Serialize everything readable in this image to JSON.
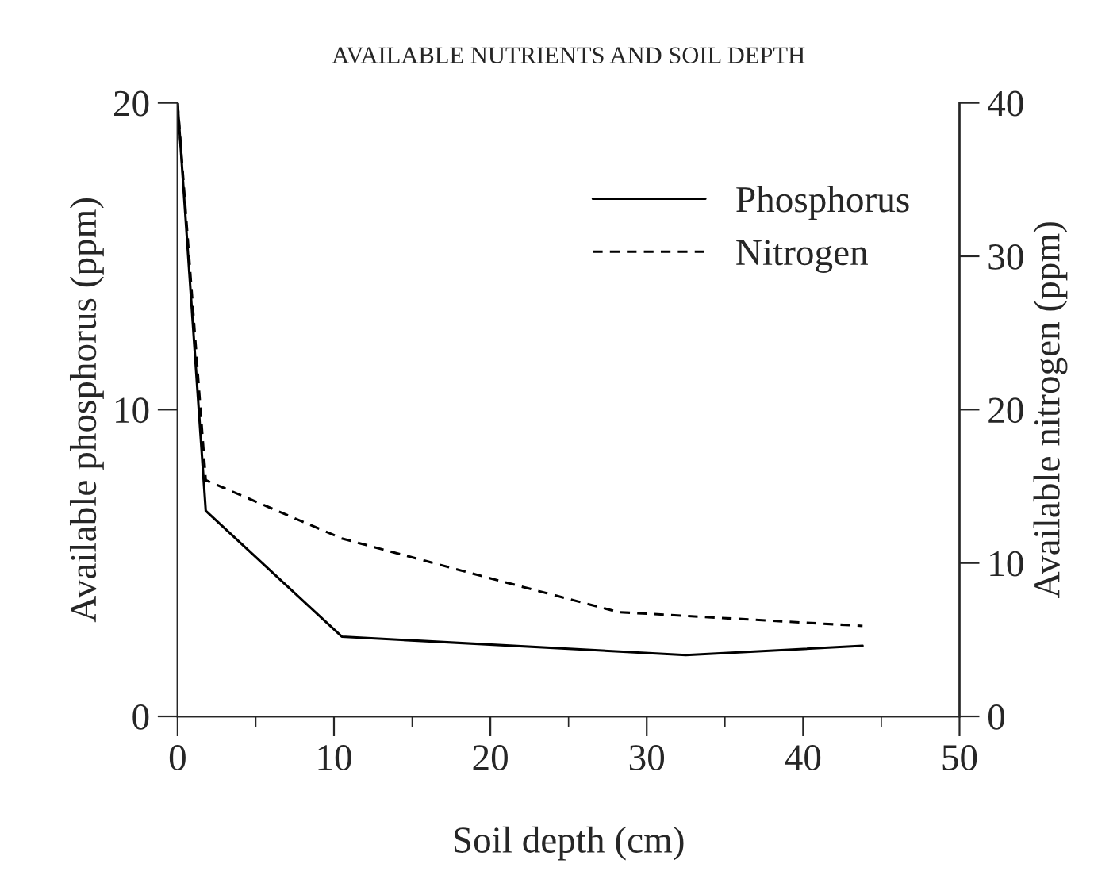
{
  "chart_data": {
    "type": "line",
    "title": "AVAILABLE NUTRIENTS AND SOIL DEPTH",
    "xlabel": "Soil depth (cm)",
    "ylabel": "Available phosphorus (ppm)",
    "y2label": "Available nitrogen (ppm)",
    "series": [
      {
        "name": "Phosphorus",
        "color": "#000000",
        "line_style": "solid",
        "x": [
          0,
          1.8,
          10.5,
          32.5,
          43.8
        ],
        "values": [
          20,
          6.7,
          2.6,
          2.0,
          2.3
        ]
      },
      {
        "name": "Nitrogen",
        "color": "#000000",
        "line_style": "dashed",
        "axis": "y2",
        "x": [
          0,
          1.8,
          10.5,
          20,
          28.2,
          43.8
        ],
        "values": [
          40,
          15.4,
          11.6,
          9.0,
          6.8,
          5.9
        ]
      }
    ],
    "xlim": [
      0,
      50
    ],
    "xticks": [
      0,
      {
        "value": 5,
        "label": null
      },
      10,
      {
        "value": 15,
        "label": null
      },
      20,
      {
        "value": 25,
        "label": null
      },
      30,
      {
        "value": 35,
        "label": null
      },
      40,
      {
        "value": 45,
        "label": null
      },
      50
    ],
    "ylim": [
      0,
      20
    ],
    "yticks": [
      0,
      10,
      20
    ],
    "y2lim": [
      0,
      40
    ],
    "y2ticks": [
      0,
      10,
      20,
      30,
      40
    ],
    "legend": "top right",
    "grid": false
  }
}
